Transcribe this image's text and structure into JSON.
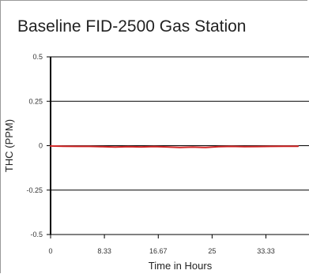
{
  "chart_data": {
    "type": "line",
    "title": "Baseline FID-2500 Gas Station",
    "xlabel": "Time in Hours",
    "ylabel": "THC (PPM)",
    "xlim": [
      0,
      40
    ],
    "ylim": [
      -0.5,
      0.5
    ],
    "x_ticks": [
      0,
      8.33,
      16.67,
      25,
      33.33
    ],
    "x_tick_labels": [
      "0",
      "8.33",
      "16.67",
      "25",
      "33.33"
    ],
    "y_ticks": [
      0.5,
      0.25,
      0,
      -0.25,
      -0.5
    ],
    "y_tick_labels": [
      "0.5",
      "0.25",
      "0",
      "-0.25",
      "-0.5"
    ],
    "grid": true,
    "series": [
      {
        "color": "#d42a2a",
        "x": [
          0,
          2,
          4,
          6,
          8,
          10,
          12,
          14,
          16,
          18,
          20,
          22,
          24,
          26,
          28,
          30,
          32,
          34,
          36,
          38.3
        ],
        "y": [
          -0.002,
          -0.003,
          -0.004,
          -0.004,
          -0.006,
          -0.008,
          -0.006,
          -0.007,
          -0.005,
          -0.007,
          -0.01,
          -0.008,
          -0.01,
          -0.006,
          -0.004,
          -0.006,
          -0.005,
          -0.004,
          -0.003,
          -0.003
        ]
      }
    ]
  }
}
